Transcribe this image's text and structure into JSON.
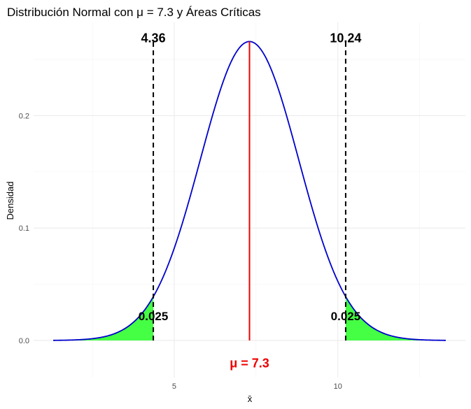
{
  "chart_data": {
    "type": "area",
    "title": "Distribución Normal con μ = 7.3 y Áreas Críticas",
    "xlabel": "x̄",
    "ylabel": "Densidad",
    "mean": 7.3,
    "sd": 1.5,
    "xlim": [
      1.3,
      13.3
    ],
    "xlim_view": [
      0.7,
      13.9
    ],
    "ylim": [
      -0.033,
      0.283
    ],
    "x_ticks": [
      5,
      10
    ],
    "x_tick_labels": [
      "5",
      "10"
    ],
    "y_ticks": [
      0.0,
      0.1,
      0.2
    ],
    "y_tick_labels": [
      "0.0",
      "0.1",
      "0.2"
    ],
    "critical_values": [
      4.36,
      10.24
    ],
    "critical_labels": [
      "4.36",
      "10.24"
    ],
    "tail_area_labels": [
      "0.025",
      "0.025"
    ],
    "mu_label": "μ = 7.3",
    "grid": true,
    "colors": {
      "curve": "#0000cc",
      "tail_fill": "#44ff44",
      "mean_line": "#ee0000",
      "critical_line": "#000000",
      "mu_label": "#ee0000"
    }
  }
}
